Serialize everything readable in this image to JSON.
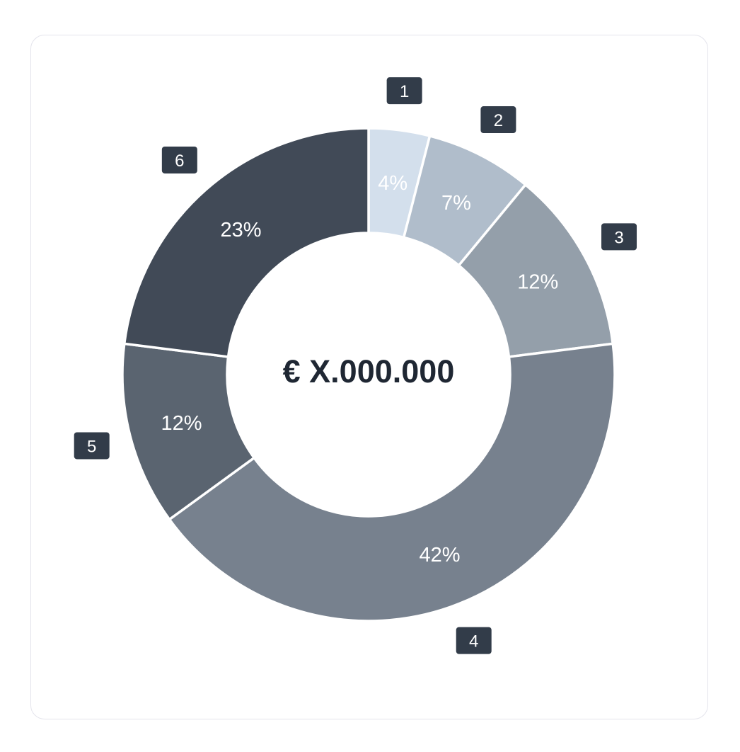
{
  "chart_data": {
    "type": "pie",
    "variant": "donut",
    "center_label": "€ X.000.000",
    "categories": [
      "1",
      "2",
      "3",
      "4",
      "5",
      "6"
    ],
    "values": [
      4,
      7,
      12,
      42,
      12,
      23
    ],
    "value_labels": [
      "4%",
      "7%",
      "12%",
      "42%",
      "12%",
      "23%"
    ],
    "colors": [
      "#d3dfec",
      "#b0bdcb",
      "#949faa",
      "#77818e",
      "#5a6470",
      "#414a57"
    ],
    "badge_color": "#323c49",
    "legend": "badges-around-ring"
  }
}
